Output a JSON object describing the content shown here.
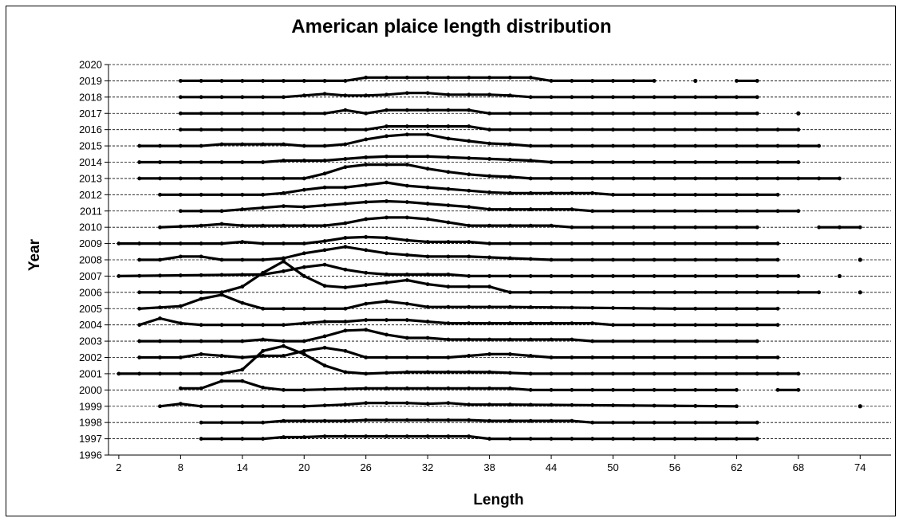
{
  "chart_data": {
    "type": "line",
    "title": "American plaice length distribution",
    "xlabel": "Length",
    "ylabel": "Year",
    "xlim": [
      1,
      77
    ],
    "ylim": [
      1996,
      2020
    ],
    "x_ticks": [
      2,
      8,
      14,
      20,
      26,
      32,
      38,
      44,
      50,
      56,
      62,
      68,
      74
    ],
    "y_ticks": [
      1996,
      1997,
      1998,
      1999,
      2000,
      2001,
      2002,
      2003,
      2004,
      2005,
      2006,
      2007,
      2008,
      2009,
      2010,
      2011,
      2012,
      2013,
      2014,
      2015,
      2016,
      2017,
      2018,
      2019,
      2020
    ],
    "grid": "horizontal dashed",
    "legend": "none",
    "series": [
      {
        "year": 1997,
        "x": [
          10,
          16,
          18,
          20,
          22,
          24,
          26,
          28,
          30,
          32,
          34,
          36,
          38,
          40,
          50,
          64
        ],
        "y": [
          0,
          0,
          0.1,
          0.1,
          0.15,
          0.15,
          0.15,
          0.15,
          0.15,
          0.15,
          0.15,
          0.15,
          0,
          0,
          0,
          0
        ]
      },
      {
        "year": 1998,
        "x": [
          10,
          16,
          18,
          22,
          24,
          26,
          28,
          30,
          32,
          34,
          36,
          38,
          44,
          46,
          48,
          64
        ],
        "y": [
          0,
          0,
          0.1,
          0.1,
          0.1,
          0.15,
          0.15,
          0.15,
          0.15,
          0.15,
          0.15,
          0.1,
          0.1,
          0.1,
          0,
          0
        ]
      },
      {
        "year": 1999,
        "x": [
          6,
          8,
          10,
          20,
          24,
          26,
          28,
          30,
          32,
          34,
          36,
          40,
          62
        ],
        "y": [
          0,
          0.15,
          0,
          0,
          0.1,
          0.2,
          0.2,
          0.2,
          0.15,
          0.2,
          0.1,
          0.1,
          0
        ],
        "dots": [
          74
        ]
      },
      {
        "year": 2000,
        "x": [
          8,
          10,
          12,
          14,
          16,
          18,
          20,
          26,
          28,
          30,
          34,
          36,
          38,
          40,
          42,
          62
        ],
        "y": [
          0.1,
          0.1,
          0.55,
          0.55,
          0.15,
          0,
          0,
          0.1,
          0.1,
          0.1,
          0.1,
          0.1,
          0.1,
          0.1,
          0,
          0
        ],
        "segments": [
          [
            66,
            68
          ]
        ]
      },
      {
        "year": 2001,
        "x": [
          2,
          12,
          14,
          16,
          18,
          20,
          22,
          24,
          26,
          30,
          38,
          42,
          68
        ],
        "y": [
          0,
          0,
          0.25,
          1.4,
          1.7,
          1.2,
          0.5,
          0.1,
          0,
          0.1,
          0.1,
          0,
          0
        ]
      },
      {
        "year": 2002,
        "x": [
          4,
          8,
          10,
          14,
          16,
          18,
          20,
          22,
          24,
          26,
          28,
          32,
          34,
          36,
          38,
          40,
          42,
          44,
          66
        ],
        "y": [
          0,
          0,
          0.2,
          0,
          0.1,
          0.1,
          0.4,
          0.6,
          0.4,
          0,
          0,
          0,
          0,
          0.1,
          0.2,
          0.2,
          0.1,
          0,
          0
        ]
      },
      {
        "year": 2003,
        "x": [
          4,
          14,
          16,
          18,
          20,
          22,
          24,
          26,
          28,
          30,
          32,
          34,
          36,
          38,
          44,
          46,
          48,
          64
        ],
        "y": [
          0,
          0,
          0.1,
          0,
          0,
          0.3,
          0.65,
          0.7,
          0.4,
          0.2,
          0.2,
          0.1,
          0.1,
          0.1,
          0.1,
          0.1,
          0,
          0
        ]
      },
      {
        "year": 2004,
        "x": [
          4,
          6,
          8,
          10,
          14,
          16,
          18,
          20,
          22,
          24,
          26,
          28,
          30,
          32,
          34,
          38,
          44,
          46,
          48,
          50,
          66
        ],
        "y": [
          0,
          0.4,
          0.1,
          0,
          0,
          0,
          0,
          0.1,
          0.2,
          0.2,
          0.3,
          0.3,
          0.3,
          0.2,
          0.1,
          0.1,
          0.1,
          0.1,
          0.1,
          0,
          0
        ]
      },
      {
        "year": 2005,
        "x": [
          4,
          8,
          10,
          12,
          14,
          16,
          24,
          26,
          28,
          30,
          32,
          34,
          38,
          40,
          56,
          58,
          66
        ],
        "y": [
          0,
          0.15,
          0.6,
          0.85,
          0.35,
          0,
          0,
          0.3,
          0.45,
          0.3,
          0.1,
          0.1,
          0.1,
          0.1,
          0,
          0,
          0
        ]
      },
      {
        "year": 2006,
        "x": [
          4,
          12,
          14,
          16,
          18,
          20,
          22,
          24,
          26,
          28,
          30,
          32,
          34,
          36,
          38,
          40,
          70
        ],
        "y": [
          0,
          0,
          0.35,
          1.2,
          1.9,
          1.0,
          0.4,
          0.3,
          0.45,
          0.6,
          0.75,
          0.5,
          0.35,
          0.35,
          0.35,
          0,
          0
        ],
        "dots": [
          74
        ]
      },
      {
        "year": 2007,
        "x": [
          2,
          16,
          18,
          20,
          22,
          24,
          26,
          28,
          30,
          32,
          34,
          36,
          38,
          68
        ],
        "y": [
          0,
          0.1,
          0.3,
          0.55,
          0.7,
          0.4,
          0.2,
          0.1,
          0.1,
          0.1,
          0.1,
          0,
          0,
          0
        ],
        "dots": [
          72
        ]
      },
      {
        "year": 2008,
        "x": [
          4,
          6,
          8,
          10,
          12,
          16,
          18,
          20,
          22,
          24,
          26,
          28,
          30,
          32,
          34,
          36,
          40,
          44,
          66
        ],
        "y": [
          0,
          0,
          0.2,
          0.2,
          0,
          0,
          0.1,
          0.4,
          0.6,
          0.8,
          0.6,
          0.4,
          0.3,
          0.2,
          0.2,
          0.2,
          0.1,
          0,
          0
        ],
        "dots": [
          74
        ]
      },
      {
        "year": 2009,
        "x": [
          2,
          12,
          14,
          16,
          20,
          22,
          24,
          26,
          28,
          30,
          32,
          36,
          38,
          66
        ],
        "y": [
          0,
          0,
          0.1,
          0,
          0,
          0.15,
          0.35,
          0.4,
          0.35,
          0.2,
          0.1,
          0.1,
          0,
          0
        ]
      },
      {
        "year": 2010,
        "x": [
          6,
          10,
          12,
          14,
          18,
          22,
          24,
          26,
          28,
          30,
          32,
          34,
          36,
          44,
          46,
          64
        ],
        "y": [
          0,
          0.1,
          0.2,
          0.1,
          0.1,
          0.1,
          0.25,
          0.5,
          0.6,
          0.6,
          0.5,
          0.3,
          0.1,
          0.1,
          0,
          0
        ],
        "segments": [
          [
            70,
            74
          ]
        ]
      },
      {
        "year": 2011,
        "x": [
          8,
          12,
          14,
          16,
          18,
          20,
          22,
          24,
          26,
          28,
          30,
          32,
          34,
          36,
          38,
          40,
          46,
          48,
          50,
          68
        ],
        "y": [
          0,
          0,
          0.1,
          0.2,
          0.3,
          0.25,
          0.35,
          0.45,
          0.55,
          0.6,
          0.55,
          0.45,
          0.35,
          0.25,
          0.1,
          0.1,
          0.1,
          0,
          0,
          0
        ]
      },
      {
        "year": 2012,
        "x": [
          6,
          16,
          18,
          20,
          22,
          24,
          26,
          28,
          30,
          32,
          34,
          36,
          38,
          40,
          48,
          50,
          52,
          66
        ],
        "y": [
          0,
          0,
          0.1,
          0.3,
          0.45,
          0.45,
          0.6,
          0.75,
          0.55,
          0.45,
          0.35,
          0.25,
          0.15,
          0.1,
          0.1,
          0,
          0,
          0
        ]
      },
      {
        "year": 2013,
        "x": [
          4,
          20,
          22,
          24,
          26,
          28,
          30,
          32,
          34,
          36,
          38,
          40,
          42,
          72
        ],
        "y": [
          0,
          0,
          0.3,
          0.7,
          0.85,
          0.85,
          0.85,
          0.6,
          0.4,
          0.25,
          0.15,
          0.1,
          0,
          0
        ]
      },
      {
        "year": 2014,
        "x": [
          4,
          16,
          18,
          20,
          22,
          24,
          26,
          28,
          30,
          32,
          34,
          36,
          38,
          40,
          42,
          44,
          68
        ],
        "y": [
          0,
          0,
          0.1,
          0.1,
          0.1,
          0.2,
          0.3,
          0.35,
          0.35,
          0.35,
          0.3,
          0.25,
          0.2,
          0.15,
          0.1,
          0,
          0
        ]
      },
      {
        "year": 2015,
        "x": [
          4,
          10,
          12,
          14,
          18,
          20,
          22,
          24,
          26,
          28,
          30,
          32,
          34,
          36,
          38,
          40,
          42,
          70
        ],
        "y": [
          0,
          0,
          0.1,
          0.1,
          0.1,
          0,
          0,
          0.1,
          0.4,
          0.6,
          0.7,
          0.7,
          0.45,
          0.3,
          0.15,
          0.1,
          0,
          0
        ]
      },
      {
        "year": 2016,
        "x": [
          8,
          26,
          28,
          30,
          32,
          34,
          36,
          38,
          40,
          68
        ],
        "y": [
          0,
          0,
          0.2,
          0.2,
          0.2,
          0.2,
          0.2,
          0,
          0,
          0
        ]
      },
      {
        "year": 2017,
        "x": [
          8,
          22,
          24,
          26,
          28,
          30,
          32,
          34,
          36,
          38,
          64
        ],
        "y": [
          0,
          0,
          0.2,
          0,
          0.2,
          0.2,
          0.2,
          0.2,
          0.2,
          0,
          0
        ],
        "dots": [
          68
        ]
      },
      {
        "year": 2018,
        "x": [
          8,
          18,
          20,
          22,
          24,
          26,
          28,
          30,
          32,
          34,
          36,
          38,
          40,
          42,
          64
        ],
        "y": [
          0,
          0,
          0.1,
          0.2,
          0.1,
          0.1,
          0.15,
          0.25,
          0.25,
          0.15,
          0.15,
          0.15,
          0.1,
          0,
          0
        ]
      },
      {
        "year": 2019,
        "x": [
          8,
          24,
          26,
          28,
          30,
          32,
          34,
          36,
          38,
          40,
          42,
          44,
          54
        ],
        "y": [
          0,
          0,
          0.2,
          0.2,
          0.2,
          0.2,
          0.2,
          0.2,
          0.2,
          0.2,
          0.2,
          0,
          0
        ],
        "dots": [
          58
        ],
        "segments": [
          [
            62,
            64
          ]
        ]
      }
    ]
  }
}
